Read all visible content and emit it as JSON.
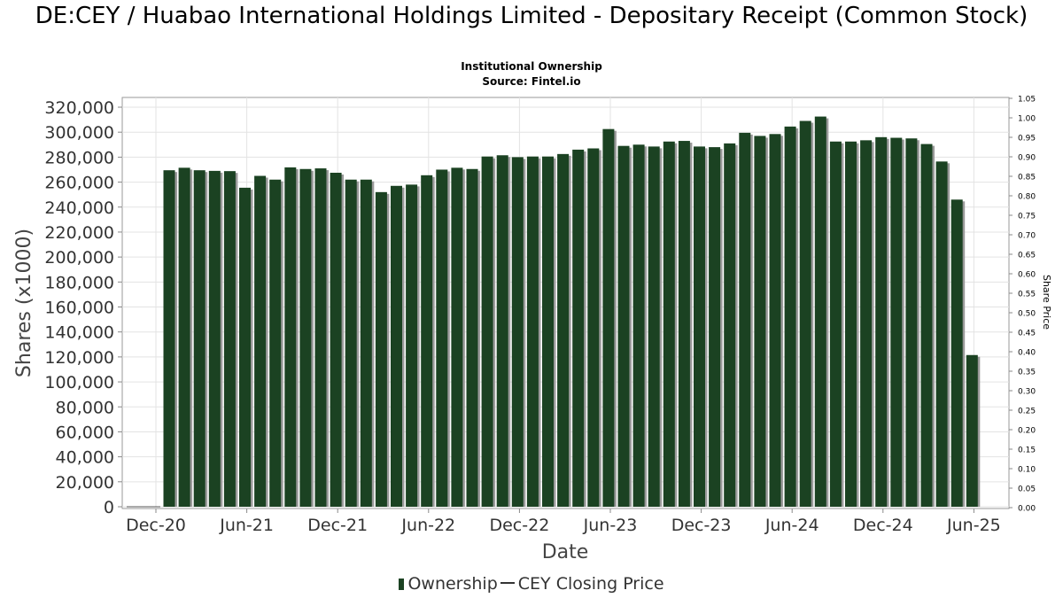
{
  "chart_data": {
    "type": "bar",
    "title": "DE:CEY / Huabao International Holdings Limited - Depositary Receipt (Common Stock)",
    "subtitle": "Institutional Ownership",
    "source": "Source: Fintel.io",
    "xlabel": "Date",
    "ylabel": "Shares (x1000)",
    "y2label": "Share Price",
    "ylim": [
      0,
      320000
    ],
    "y2lim": [
      0,
      1.05
    ],
    "x_tick_labels": [
      "Dec-20",
      "Jun-21",
      "Dec-21",
      "Jun-22",
      "Dec-22",
      "Jun-23",
      "Dec-23",
      "Jun-24",
      "Dec-24",
      "Jun-25"
    ],
    "y_tick_labels": [
      "0",
      "20,000",
      "40,000",
      "60,000",
      "80,000",
      "100,000",
      "120,000",
      "140,000",
      "160,000",
      "180,000",
      "200,000",
      "220,000",
      "240,000",
      "260,000",
      "280,000",
      "300,000",
      "320,000"
    ],
    "y2_tick_labels": [
      "0.00",
      "0.05",
      "0.10",
      "0.15",
      "0.20",
      "0.25",
      "0.30",
      "0.35",
      "0.40",
      "0.45",
      "0.50",
      "0.55",
      "0.60",
      "0.65",
      "0.70",
      "0.75",
      "0.80",
      "0.85",
      "0.90",
      "0.95",
      "1.00",
      "1.05"
    ],
    "series": [
      {
        "name": "Ownership",
        "color": "#1b4222",
        "values": [
          269500,
          271500,
          269500,
          269000,
          268800,
          255500,
          265000,
          262000,
          271800,
          270500,
          271000,
          267500,
          262000,
          262000,
          252000,
          257000,
          258000,
          265500,
          270000,
          271500,
          270500,
          280500,
          281500,
          280000,
          280500,
          280500,
          282500,
          286000,
          287000,
          302500,
          289000,
          290000,
          288500,
          292500,
          293000,
          288500,
          288000,
          291000,
          299500,
          297000,
          298500,
          304500,
          309000,
          312500,
          292500,
          292500,
          293500,
          296000,
          295500,
          295000,
          290500,
          276500,
          246000,
          121500
        ]
      },
      {
        "name": "CEY Closing Price",
        "color": "#333333",
        "values": []
      }
    ]
  },
  "legend": {
    "ownership_label": "Ownership",
    "price_label": "CEY Closing Price"
  }
}
